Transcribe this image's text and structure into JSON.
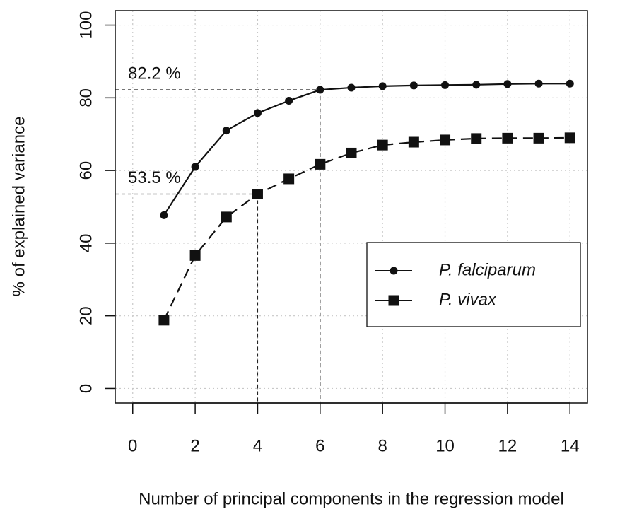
{
  "chart_data": {
    "type": "line",
    "x_label": "Number of principal components in the regression model",
    "y_label": "% of explained variance",
    "x": [
      1,
      2,
      3,
      4,
      5,
      6,
      7,
      8,
      9,
      10,
      11,
      12,
      13,
      14
    ],
    "series": [
      {
        "name": "P. falciparum",
        "color": "#111111",
        "line_style": "solid",
        "marker": "circle",
        "values": [
          47.7,
          61,
          71,
          75.8,
          79.2,
          82.2,
          82.8,
          83.2,
          83.4,
          83.5,
          83.6,
          83.8,
          83.9,
          83.9
        ]
      },
      {
        "name": "P. vivax",
        "color": "#111111",
        "line_style": "dashed",
        "marker": "square",
        "values": [
          18.8,
          36.6,
          47.2,
          53.5,
          57.7,
          61.7,
          64.8,
          67,
          67.8,
          68.4,
          68.8,
          68.9,
          68.9,
          69
        ]
      }
    ],
    "xlim": [
      -0.56,
      14.56
    ],
    "ylim": [
      -4,
      104
    ],
    "xticks": [
      0,
      2,
      4,
      6,
      8,
      10,
      12,
      14
    ],
    "yticks": [
      0,
      20,
      40,
      60,
      80,
      100
    ],
    "grid": true,
    "legend_position": "right",
    "annotations": [
      {
        "label": "82.2 %",
        "x": 6,
        "y": 82.2
      },
      {
        "label": "53.5 %",
        "x": 4,
        "y": 53.5
      }
    ]
  }
}
